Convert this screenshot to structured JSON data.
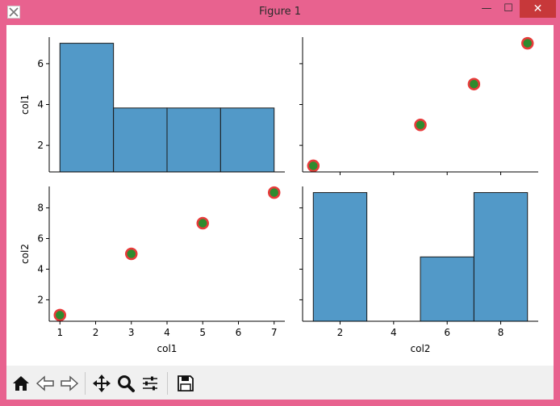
{
  "window": {
    "title": "Figure 1",
    "minimize_glyph": "—",
    "maximize_glyph": "☐",
    "close_glyph": "✕"
  },
  "toolbar": {
    "buttons": [
      {
        "name": "home-button",
        "icon": "home-icon"
      },
      {
        "name": "back-button",
        "icon": "back-arrow-icon"
      },
      {
        "name": "forward-button",
        "icon": "forward-arrow-icon"
      },
      {
        "name": "pan-button",
        "icon": "move-icon"
      },
      {
        "name": "zoom-button",
        "icon": "zoom-icon"
      },
      {
        "name": "configure-subplots-button",
        "icon": "sliders-icon"
      },
      {
        "name": "save-button",
        "icon": "floppy-disk-icon"
      }
    ]
  },
  "colors": {
    "bar_fill": "#5299c8",
    "bar_edge": "#1a1a1a",
    "marker_fill": "#2e8b2e",
    "marker_edge": "#e83a3a",
    "titlebar": "#e8628f",
    "close_button": "#c7383a"
  },
  "chart_data": [
    {
      "panel": "col1-vs-col1",
      "type": "bar",
      "histogram": true,
      "bin_edges": [
        1,
        2.5,
        4,
        5.5,
        7
      ],
      "heights": [
        7.0,
        3.83,
        3.83,
        3.83
      ],
      "xlim": [
        0.7,
        7.3
      ],
      "ylim": [
        0.7,
        7.3
      ],
      "yticks": [
        2,
        4,
        6
      ],
      "xticks": [],
      "xlabel": "",
      "ylabel": "col1"
    },
    {
      "panel": "col2-vs-col1",
      "type": "scatter",
      "x": [
        1,
        5,
        7,
        9
      ],
      "y": [
        1,
        3,
        5,
        7
      ],
      "xlim": [
        0.6,
        9.4
      ],
      "ylim": [
        0.7,
        7.3
      ],
      "xticks": [
        2,
        4,
        6,
        8
      ],
      "yticks": [
        2,
        4,
        6
      ],
      "show_xtick_labels": false,
      "show_ytick_labels": false,
      "xlabel": "",
      "ylabel": ""
    },
    {
      "panel": "col1-vs-col2",
      "type": "scatter",
      "x": [
        1,
        3,
        5,
        7
      ],
      "y": [
        1,
        5,
        7,
        9
      ],
      "xlim": [
        0.7,
        7.3
      ],
      "ylim": [
        0.6,
        9.4
      ],
      "xticks": [
        1,
        2,
        3,
        4,
        5,
        6,
        7
      ],
      "yticks": [
        2,
        4,
        6,
        8
      ],
      "xlabel": "col1",
      "ylabel": "col2"
    },
    {
      "panel": "col2-vs-col2",
      "type": "bar",
      "histogram": true,
      "bin_edges": [
        1,
        3,
        5,
        7,
        9
      ],
      "heights": [
        9.0,
        0,
        4.8,
        9.0
      ],
      "xlim": [
        0.6,
        9.4
      ],
      "ylim": [
        0.6,
        9.4
      ],
      "xticks": [
        2,
        4,
        6,
        8
      ],
      "yticks": [
        2,
        4,
        6,
        8
      ],
      "show_ytick_labels": false,
      "xlabel": "col2",
      "ylabel": ""
    }
  ]
}
